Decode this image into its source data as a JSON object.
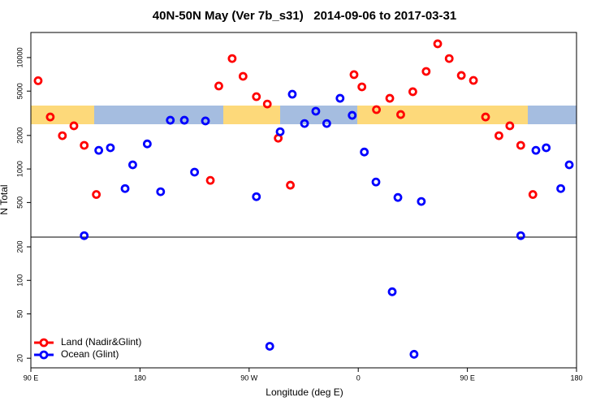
{
  "chart_data": {
    "type": "scatter",
    "title": "40N-50N May (Ver 7b_s31)   2014-09-06 to 2017-03-31",
    "x_label": "Longitude (deg E)",
    "y_label": "N Total",
    "log_y": true,
    "legend": "lower left",
    "xlim": [
      90,
      540
    ],
    "ylim": [
      16.4,
      16800
    ],
    "xticks": [
      {
        "value": 90,
        "label": "90 E"
      },
      180,
      {
        "value": 270,
        "label": "90 W"
      },
      {
        "value": 360,
        "label": "0"
      },
      {
        "value": 450,
        "label": "90 E"
      },
      {
        "value": 540,
        "label": "180"
      }
    ],
    "yticks": [
      20,
      50,
      100,
      200,
      500,
      1000,
      2000,
      5000,
      10000
    ],
    "series": [
      {
        "name": "Land (Nadir&Glint)",
        "color": "#ff0000",
        "x": [
          96,
          106,
          116,
          125.5,
          134,
          144,
          238,
          245,
          256,
          265,
          276,
          285,
          294,
          304,
          356.5,
          363,
          375,
          386,
          395,
          405,
          416,
          425.5,
          435,
          445,
          455,
          465,
          476,
          485,
          494,
          504
        ],
        "values": [
          6200,
          2930,
          1990,
          2440,
          1630,
          590,
          790,
          5560,
          9800,
          6790,
          4460,
          3830,
          1890,
          715,
          7030,
          5460,
          3410,
          4310,
          3080,
          4940,
          7510,
          13300,
          9800,
          6910,
          6240,
          2930,
          1990,
          2440,
          1630,
          590
        ]
      },
      {
        "name": "Ocean (Glint)",
        "color": "#0000ff",
        "x": [
          134,
          146,
          155.6,
          167.7,
          174,
          186,
          197,
          205,
          216.6,
          225,
          234,
          276,
          287,
          295.6,
          305.6,
          315.7,
          325,
          334,
          345,
          355,
          365,
          374.6,
          388,
          392.7,
          406,
          412,
          494,
          506.5,
          515,
          527,
          534
        ],
        "values": [
          252,
          1470,
          1550,
          667,
          1090,
          1680,
          625,
          2740,
          2740,
          937,
          2700,
          564,
          25.6,
          2160,
          4690,
          2560,
          3300,
          2560,
          4310,
          3030,
          1420,
          764,
          79,
          555,
          21.7,
          511,
          252,
          1470,
          1550,
          667,
          1090
        ]
      }
    ]
  }
}
